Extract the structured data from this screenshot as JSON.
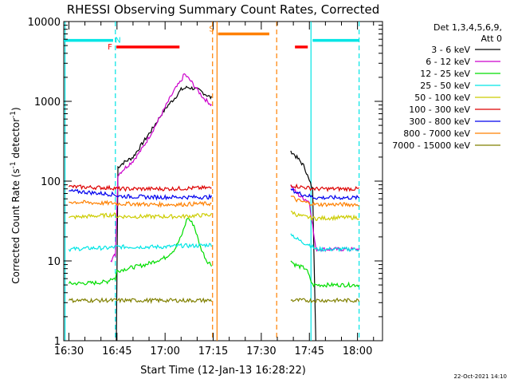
{
  "chart_data": {
    "type": "line",
    "title": "RHESSI Observing Summary Count Rates, Corrected",
    "xlabel": "Start Time (12-Jan-13 16:28:22)",
    "ylabel": "Corrected Count Rate (s",
    "ylabel_sup1": "-1",
    "ylabel_mid": " detector",
    "ylabel_sup2": "-1",
    "ylabel_end": ")",
    "x_ticks": [
      {
        "t": 0,
        "label": "16:30"
      },
      {
        "t": 15,
        "label": "16:45"
      },
      {
        "t": 30,
        "label": "17:00"
      },
      {
        "t": 45,
        "label": "17:15"
      },
      {
        "t": 60,
        "label": "17:30"
      },
      {
        "t": 75,
        "label": "17:45"
      },
      {
        "t": 90,
        "label": "18:00"
      }
    ],
    "y_ticks": [
      {
        "v": 1,
        "label": "1"
      },
      {
        "v": 10,
        "label": "10"
      },
      {
        "v": 100,
        "label": "100"
      },
      {
        "v": 1000,
        "label": "1000"
      },
      {
        "v": 10000,
        "label": "10000"
      }
    ],
    "xlim_minutes_after_1630": [
      -1.6,
      97.8
    ],
    "ylim": [
      1,
      10000
    ],
    "y_scale": "log",
    "legend_header": [
      "Det 1,3,4,5,6,9,",
      "Att 0"
    ],
    "legend_placement": "right",
    "gaps_minutes": [
      [
        45.2,
        68.5
      ]
    ],
    "series": [
      {
        "name": "3 - 6 keV",
        "color": "#000000",
        "points": [
          [
            14.8,
            1
          ],
          [
            15.3,
            150
          ],
          [
            17,
            170
          ],
          [
            20,
            200
          ],
          [
            23,
            300
          ],
          [
            26,
            450
          ],
          [
            29,
            700
          ],
          [
            31,
            900
          ],
          [
            33,
            1100
          ],
          [
            35,
            1400
          ],
          [
            37,
            1500
          ],
          [
            39,
            1450
          ],
          [
            41,
            1350
          ],
          [
            43,
            1200
          ],
          [
            44.5,
            1100
          ],
          [
            69.2,
            240
          ],
          [
            70.5,
            210
          ],
          [
            72,
            180
          ],
          [
            73.5,
            150
          ],
          [
            75,
            100
          ],
          [
            76,
            80
          ],
          [
            77,
            1
          ]
        ]
      },
      {
        "name": "6 - 12 keV",
        "color": "#cc00cc",
        "points": [
          [
            13,
            10
          ],
          [
            14.5,
            12
          ],
          [
            15.3,
            120
          ],
          [
            17,
            140
          ],
          [
            20,
            180
          ],
          [
            23,
            260
          ],
          [
            26,
            420
          ],
          [
            29,
            700
          ],
          [
            31,
            1000
          ],
          [
            33,
            1400
          ],
          [
            35,
            1800
          ],
          [
            36,
            2200
          ],
          [
            38,
            1800
          ],
          [
            40,
            1400
          ],
          [
            42,
            1100
          ],
          [
            44.5,
            900
          ],
          [
            69.2,
            90
          ],
          [
            70.5,
            75
          ],
          [
            72,
            65
          ],
          [
            73.5,
            60
          ],
          [
            75,
            55
          ],
          [
            77,
            14
          ],
          [
            90.5,
            14
          ]
        ]
      },
      {
        "name": "12 - 25 keV",
        "color": "#00dd00",
        "points": [
          [
            0,
            5.2
          ],
          [
            8,
            5.3
          ],
          [
            12,
            5.5
          ],
          [
            13,
            6
          ],
          [
            14.5,
            6
          ],
          [
            15,
            7.5
          ],
          [
            18,
            8
          ],
          [
            21,
            8.5
          ],
          [
            24,
            9
          ],
          [
            27,
            10
          ],
          [
            30,
            11
          ],
          [
            33,
            14
          ],
          [
            35,
            20
          ],
          [
            37,
            35
          ],
          [
            39,
            28
          ],
          [
            41,
            15
          ],
          [
            43,
            10
          ],
          [
            44.5,
            9
          ],
          [
            69.2,
            10
          ],
          [
            70.5,
            9
          ],
          [
            72,
            8.5
          ],
          [
            74,
            8
          ],
          [
            76,
            5
          ],
          [
            80,
            5
          ],
          [
            85,
            5
          ],
          [
            90.5,
            5
          ]
        ]
      },
      {
        "name": "25 - 50 keV",
        "color": "#00e5e5",
        "points": [
          [
            0,
            14
          ],
          [
            8,
            14.5
          ],
          [
            12,
            14.5
          ],
          [
            15,
            15
          ],
          [
            20,
            15
          ],
          [
            25,
            15
          ],
          [
            30,
            15
          ],
          [
            35,
            15.5
          ],
          [
            40,
            15.5
          ],
          [
            44.5,
            16
          ],
          [
            69.2,
            22
          ],
          [
            71,
            19
          ],
          [
            73,
            17
          ],
          [
            75,
            16
          ],
          [
            77,
            14
          ],
          [
            85,
            14
          ],
          [
            90.5,
            14
          ]
        ]
      },
      {
        "name": "50 - 100 keV",
        "color": "#cccc00",
        "points": [
          [
            0,
            35
          ],
          [
            5,
            36
          ],
          [
            10,
            37
          ],
          [
            14.5,
            38
          ],
          [
            15,
            36
          ],
          [
            20,
            36
          ],
          [
            25,
            36
          ],
          [
            30,
            36
          ],
          [
            35,
            36
          ],
          [
            40,
            37
          ],
          [
            44.5,
            38
          ],
          [
            69.2,
            42
          ],
          [
            71,
            38
          ],
          [
            73,
            36
          ],
          [
            75,
            35
          ],
          [
            77,
            34
          ],
          [
            85,
            35
          ],
          [
            90.5,
            35
          ]
        ]
      },
      {
        "name": "100 - 300 keV",
        "color": "#dd0000",
        "points": [
          [
            0,
            85
          ],
          [
            5,
            84
          ],
          [
            10,
            83
          ],
          [
            14.5,
            82
          ],
          [
            15,
            80
          ],
          [
            20,
            80
          ],
          [
            25,
            80
          ],
          [
            30,
            80
          ],
          [
            35,
            81
          ],
          [
            40,
            82
          ],
          [
            44.5,
            82
          ],
          [
            69.2,
            90
          ],
          [
            71,
            86
          ],
          [
            73,
            84
          ],
          [
            75,
            82
          ],
          [
            77,
            80
          ],
          [
            85,
            80
          ],
          [
            90.5,
            80
          ]
        ]
      },
      {
        "name": "300 - 800 keV",
        "color": "#0000ee",
        "points": [
          [
            0,
            75
          ],
          [
            5,
            73
          ],
          [
            10,
            70
          ],
          [
            14.5,
            68
          ],
          [
            15,
            65
          ],
          [
            20,
            64
          ],
          [
            25,
            63
          ],
          [
            30,
            63
          ],
          [
            35,
            63
          ],
          [
            40,
            63
          ],
          [
            44.5,
            63
          ],
          [
            69.2,
            80
          ],
          [
            71,
            72
          ],
          [
            73,
            68
          ],
          [
            75,
            65
          ],
          [
            77,
            62
          ],
          [
            85,
            62
          ],
          [
            90.5,
            62
          ]
        ]
      },
      {
        "name": "800 - 7000 keV",
        "color": "#ff8000",
        "points": [
          [
            0,
            55
          ],
          [
            5,
            54
          ],
          [
            10,
            53
          ],
          [
            14.5,
            53
          ],
          [
            15,
            52
          ],
          [
            20,
            52
          ],
          [
            25,
            51
          ],
          [
            30,
            51
          ],
          [
            35,
            51
          ],
          [
            40,
            52
          ],
          [
            44.5,
            52
          ],
          [
            69.2,
            65
          ],
          [
            71,
            58
          ],
          [
            73,
            55
          ],
          [
            75,
            53
          ],
          [
            77,
            51
          ],
          [
            85,
            51
          ],
          [
            90.5,
            51
          ]
        ]
      },
      {
        "name": "7000 - 15000 keV",
        "color": "#808000",
        "points": [
          [
            0,
            3.2
          ],
          [
            5,
            3.2
          ],
          [
            10,
            3.2
          ],
          [
            14.5,
            3.2
          ],
          [
            15,
            3.2
          ],
          [
            20,
            3.2
          ],
          [
            25,
            3.2
          ],
          [
            30,
            3.2
          ],
          [
            35,
            3.2
          ],
          [
            40,
            3.2
          ],
          [
            44.5,
            3.2
          ],
          [
            69.2,
            3.2
          ],
          [
            75,
            3.2
          ],
          [
            80,
            3.2
          ],
          [
            85,
            3.2
          ],
          [
            90.5,
            3.2
          ]
        ]
      }
    ],
    "flag_bars": [
      {
        "label": "N",
        "color": "#00e5e5",
        "y": 5800,
        "segments": [
          [
            -1.6,
            13.8
          ],
          [
            76,
            90.5
          ]
        ]
      },
      {
        "label": "F",
        "color": "#ff0000",
        "y": 4800,
        "segments": [
          [
            14.8,
            34.5
          ],
          [
            70.5,
            74.5
          ]
        ]
      },
      {
        "label": "S",
        "color": "#ff8000",
        "y": 7000,
        "segments": [
          [
            46.5,
            62.5
          ]
        ]
      }
    ],
    "vertical_lines": [
      {
        "t": 14.5,
        "color": "#00e5e5",
        "style": "dashed"
      },
      {
        "t": 75.5,
        "color": "#00e5e5",
        "style": "solid"
      },
      {
        "t": 90.5,
        "color": "#00e5e5",
        "style": "dashed"
      },
      {
        "t": 44.8,
        "color": "#ff8000",
        "style": "dashed"
      },
      {
        "t": 46.2,
        "color": "#ff8000",
        "style": "solid"
      },
      {
        "t": 64.8,
        "color": "#ff8000",
        "style": "dashed"
      },
      {
        "t": -1.2,
        "color": "#00e5e5",
        "style": "solid"
      }
    ]
  },
  "footer_date": "22-Oct-2021 14:10"
}
